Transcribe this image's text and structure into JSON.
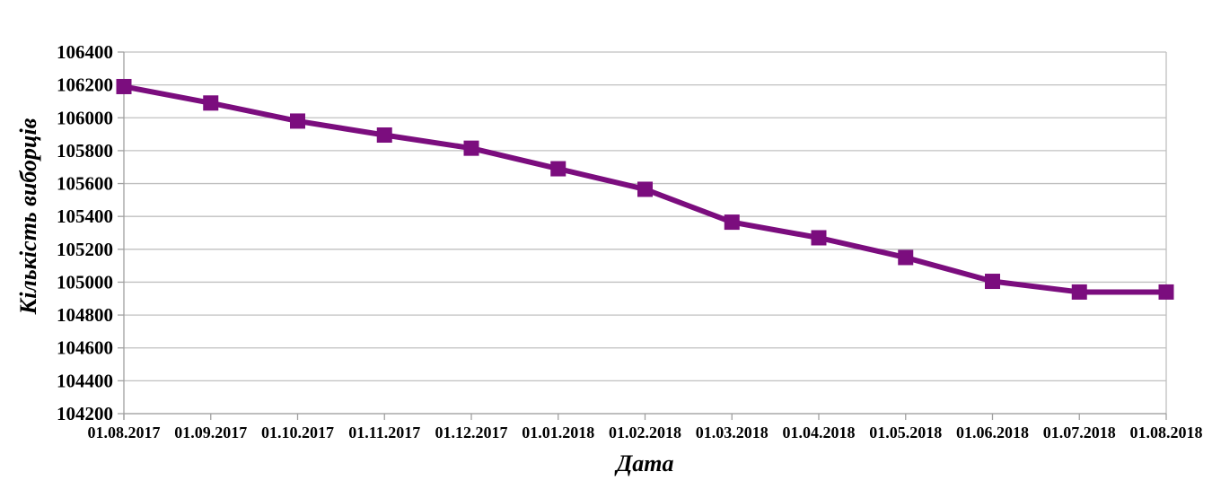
{
  "chart_data": {
    "type": "line",
    "title": "",
    "xlabel": "Дата",
    "ylabel": "Кількість виборців",
    "categories": [
      "01.08.2017",
      "01.09.2017",
      "01.10.2017",
      "01.11.2017",
      "01.12.2017",
      "01.01.2018",
      "01.02.2018",
      "01.03.2018",
      "01.04.2018",
      "01.05.2018",
      "01.06.2018",
      "01.07.2018",
      "01.08.2018"
    ],
    "series": [
      {
        "name": "Кількість виборців",
        "values": [
          106190,
          106090,
          105980,
          105895,
          105815,
          105690,
          105565,
          105365,
          105270,
          105150,
          105005,
          104940,
          104940
        ]
      }
    ],
    "ylim": [
      104200,
      106400
    ],
    "ystep": 200,
    "yticks": [
      104200,
      104400,
      104600,
      104800,
      105000,
      105200,
      105400,
      105600,
      105800,
      106000,
      106200,
      106400
    ],
    "grid": "horizontal",
    "legend": "none",
    "marker": "square",
    "colors": {
      "line": "#7B0D7E",
      "marker": "#7B0D7E",
      "gridline": "#C0C0C0",
      "axis": "#A0A0A0",
      "text": "#000000",
      "background": "#FFFFFF"
    }
  }
}
